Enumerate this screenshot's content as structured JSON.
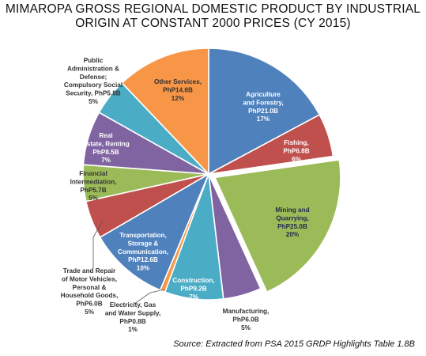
{
  "title_lines": [
    "MIMAROPA  GROSS REGIONAL  DOMESTIC PRODUCT BY INDUSTRIAL",
    "ORIGIN AT CONSTANT 2000 PRICES (CY 2015)"
  ],
  "source": "Source: Extracted from PSA 2015 GRDP Highlights Table 1.8B",
  "chart_data": {
    "type": "pie",
    "title": "MIMAROPA  GROSS REGIONAL  DOMESTIC PRODUCT BY INDUSTRIAL ORIGIN AT CONSTANT 2000 PRICES (CY 2015)",
    "unit": "PhP billion",
    "slices": [
      {
        "label": "Agriculture and Forestry",
        "value": 21.0,
        "value_label": "PhP21.0B",
        "percent": "17%",
        "color": "#4f81bd",
        "label_lines": [
          "Agriculture",
          "and Forestry,",
          "PhP21.0B",
          "17%"
        ],
        "label_color": "#ffffff"
      },
      {
        "label": "Fishing",
        "value": 6.8,
        "value_label": "PhP6.8B",
        "percent": "6%",
        "color": "#c0504d",
        "label_lines": [
          "Fishing,",
          "PhP6.8B",
          "6%"
        ],
        "label_color": "#ffffff"
      },
      {
        "label": "Mining and Quarrying",
        "value": 25.0,
        "value_label": "PhP25.0B",
        "percent": "20%",
        "color": "#9bbb59",
        "label_lines": [
          "Mining and",
          "Quarrying,",
          "PhP25.0B",
          "20%"
        ],
        "label_color": "#1f2a4d"
      },
      {
        "label": "Manufacturing",
        "value": 6.0,
        "value_label": "PhP6.0B",
        "percent": "5%",
        "color": "#8064a2",
        "label_lines": [
          "Manufacturing,",
          "PhP6.0B",
          "5%"
        ],
        "label_color": "#333333"
      },
      {
        "label": "Construction",
        "value": 9.2,
        "value_label": "PhP9.2B",
        "percent": "7%",
        "color": "#4bacc6",
        "label_lines": [
          "Construction,",
          "PhP9.2B",
          "7%"
        ],
        "label_color": "#ffffff"
      },
      {
        "label": "Electricity, Gas and Water Supply",
        "value": 0.8,
        "value_label": "PhP0.8B",
        "percent": "1%",
        "color": "#f79646",
        "label_lines": [
          "Electricity, Gas",
          "and Water Supply,",
          "PhP0.8B",
          "1%"
        ],
        "label_color": "#333333"
      },
      {
        "label": "Transportation, Storage & Communication",
        "value": 12.6,
        "value_label": "PhP12.6B",
        "percent": "10%",
        "color": "#4f81bd",
        "label_lines": [
          "Transportation,",
          "Storage &",
          "Communication,",
          "PhP12.6B",
          "10%"
        ],
        "label_color": "#ffffff"
      },
      {
        "label": "Trade and Repair of Motor Vehicles, Personal & Household Goods",
        "value": 6.0,
        "value_label": "PhP6.0B",
        "percent": "5%",
        "color": "#c0504d",
        "label_lines": [
          "Trade and Repair",
          "of Motor Vehicles,",
          "Personal &",
          "Household Goods,",
          "PhP6.0B",
          "5%"
        ],
        "label_color": "#333333"
      },
      {
        "label": "Financial Intermediation",
        "value": 5.7,
        "value_label": "PhP5.7B",
        "percent": "5%",
        "color": "#9bbb59",
        "label_lines": [
          "Financial",
          "Intermediation,",
          "PhP5.7B",
          "5%"
        ],
        "label_color": "#333333"
      },
      {
        "label": "Real Estate, Renting",
        "value": 8.5,
        "value_label": "PhP8.5B",
        "percent": "7%",
        "color": "#8064a2",
        "label_lines": [
          "Real",
          "Estate, Renting",
          "PhP8.5B",
          "7%"
        ],
        "label_color": "#ffffff"
      },
      {
        "label": "Public Administration & Defense; Compulsory Social Security",
        "value": 5.8,
        "value_label": "PhP5.8B",
        "percent": "5%",
        "color": "#4bacc6",
        "label_lines": [
          "Public",
          "Administration &",
          "Defense;",
          "Compulsory Social",
          "Security, PhP5.8B",
          "5%"
        ],
        "label_color": "#333333"
      },
      {
        "label": "Other Services",
        "value": 14.8,
        "value_label": "PhP14.8B",
        "percent": "12%",
        "color": "#f79646",
        "label_lines": [
          "Other Services,",
          "PhP14.8B",
          "12%"
        ],
        "label_color": "#333333"
      }
    ],
    "exploded": [
      "Mining and Quarrying"
    ],
    "legend": "none"
  }
}
